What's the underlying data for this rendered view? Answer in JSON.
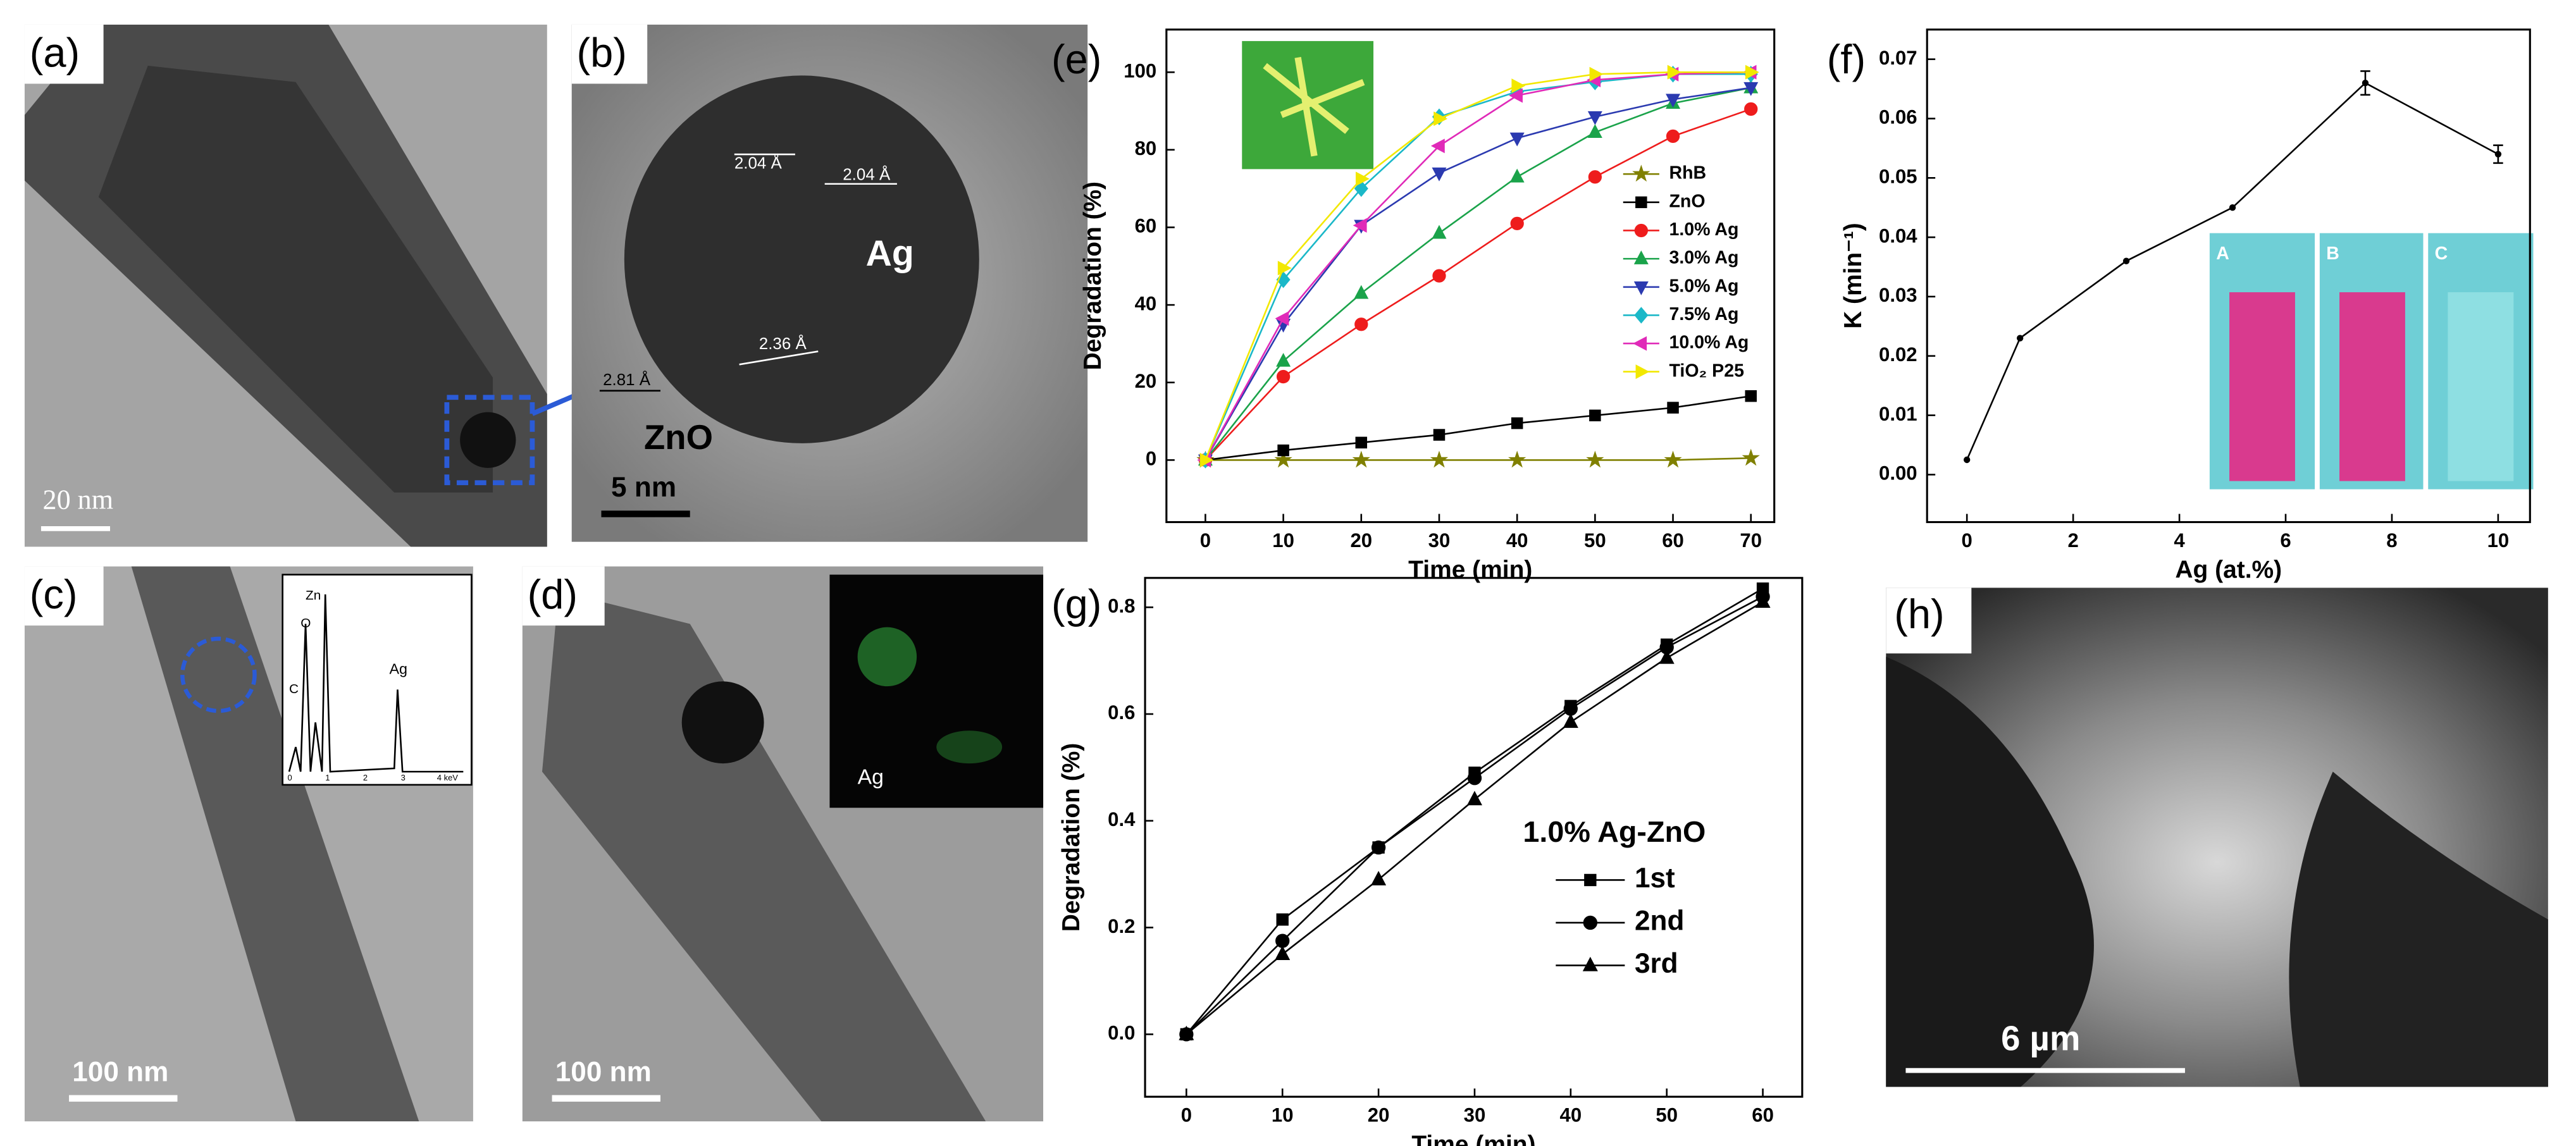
{
  "panels": {
    "a": {
      "label": "(a)",
      "scale_bar": "20 nm"
    },
    "b": {
      "label": "(b)",
      "spacings": [
        "2.04 Å",
        "2.04 Å",
        "2.36 Å",
        "2.81 Å"
      ],
      "particle": "Ag",
      "matrix": "ZnO",
      "scale_bar": "5 nm"
    },
    "c": {
      "label": "(c)",
      "scale_bar": "100 nm",
      "eds_peaks": [
        "Zn",
        "O",
        "C",
        "Ag"
      ],
      "eds_axis": [
        "0",
        "1",
        "2",
        "3",
        "4 keV"
      ]
    },
    "d": {
      "label": "(d)",
      "scale_bar": "100 nm",
      "map_element": "Ag"
    },
    "e": {
      "label": "(e)"
    },
    "f": {
      "label": "(f)",
      "cuvettes": [
        "A",
        "B",
        "C"
      ]
    },
    "g": {
      "label": "(g)"
    },
    "h": {
      "label": "(h)",
      "scale_bar": "6 µm"
    }
  },
  "chart_data": [
    {
      "type": "line",
      "x_label": "Time (min)",
      "y_label": "Degradation (%)",
      "x": [
        0,
        10,
        20,
        30,
        40,
        50,
        60,
        70
      ],
      "xlim": [
        -5,
        73
      ],
      "ylim": [
        -16,
        111
      ],
      "xticks": [
        0,
        10,
        20,
        30,
        40,
        50,
        60,
        70
      ],
      "yticks": [
        0,
        20,
        40,
        60,
        80,
        100
      ],
      "legend": "right",
      "series": [
        {
          "name": "RhB",
          "color": "#808000",
          "marker": "star",
          "values": [
            0,
            0,
            0,
            0,
            0,
            0,
            0,
            0.5
          ]
        },
        {
          "name": "ZnO",
          "color": "#000000",
          "marker": "square",
          "values": [
            0,
            2.5,
            4.5,
            6.5,
            9.5,
            11.5,
            13.5,
            16.5
          ]
        },
        {
          "name": "1.0% Ag",
          "color": "#ee1c1c",
          "marker": "circle",
          "values": [
            0,
            21.5,
            35,
            47.5,
            61,
            73,
            83.5,
            90.5
          ]
        },
        {
          "name": "3.0% Ag",
          "color": "#1aa34a",
          "marker": "triangle-up",
          "values": [
            0,
            25.5,
            43,
            58.5,
            73,
            84.5,
            92,
            96
          ]
        },
        {
          "name": "5.0% Ag",
          "color": "#2b3ab0",
          "marker": "triangle-down",
          "values": [
            0,
            35,
            60.5,
            74,
            83,
            88.5,
            93,
            96
          ]
        },
        {
          "name": "7.5% Ag",
          "color": "#1bb8c8",
          "marker": "diamond",
          "values": [
            0,
            46.5,
            70,
            88.5,
            95,
            97.5,
            99.5,
            99.5
          ]
        },
        {
          "name": "10.0% Ag",
          "color": "#e02ab8",
          "marker": "triangle-left",
          "values": [
            0,
            36.5,
            60.5,
            81,
            94,
            98,
            99.5,
            100
          ]
        },
        {
          "name": "TiO₂ P25",
          "color": "#f2e800",
          "marker": "triangle-right",
          "values": [
            0,
            49.5,
            72.5,
            88,
            96.5,
            99.5,
            100,
            100
          ]
        }
      ]
    },
    {
      "type": "line",
      "x_label": "Ag (at.%)",
      "y_label": "K (min⁻¹)",
      "x": [
        0,
        1,
        3,
        5,
        7.5,
        10
      ],
      "xlim": [
        -0.75,
        10.6
      ],
      "ylim": [
        -0.008,
        0.075
      ],
      "xticks": [
        0,
        2,
        4,
        6,
        8,
        10
      ],
      "yticks": [
        {
          "value": 0,
          "label": "0.00"
        },
        0.01,
        0.02,
        0.03,
        0.04,
        0.05,
        0.06,
        0.07
      ],
      "series": [
        {
          "color": "#000000",
          "marker": "dot",
          "values": [
            0.0025,
            0.023,
            0.036,
            0.045,
            0.066,
            0.054
          ],
          "errors": [
            null,
            null,
            null,
            null,
            0.002,
            0.0015
          ]
        }
      ]
    },
    {
      "type": "line",
      "x_label": "Time (min)",
      "y_label": "Degradation (%)",
      "x": [
        0,
        10,
        20,
        30,
        40,
        50,
        60
      ],
      "xlim": [
        -4.3,
        64.1
      ],
      "ylim": [
        -0.117,
        0.855
      ],
      "xticks": [
        0,
        10,
        20,
        30,
        40,
        50,
        60
      ],
      "yticks": [
        {
          "value": 0,
          "label": "0.0"
        },
        0.2,
        0.4,
        0.6,
        0.8
      ],
      "legend": "lower right",
      "legend_title": "1.0% Ag-ZnO",
      "series": [
        {
          "name": "1st",
          "color": "#000000",
          "marker": "square",
          "values": [
            0,
            0.215,
            0.35,
            0.49,
            0.615,
            0.73,
            0.835
          ]
        },
        {
          "name": "2nd",
          "color": "#000000",
          "marker": "circle",
          "values": [
            0,
            0.175,
            0.35,
            0.48,
            0.61,
            0.725,
            0.82
          ]
        },
        {
          "name": "3rd",
          "color": "#000000",
          "marker": "triangle-up",
          "values": [
            0,
            0.15,
            0.29,
            0.44,
            0.585,
            0.705,
            0.81
          ]
        }
      ]
    }
  ]
}
